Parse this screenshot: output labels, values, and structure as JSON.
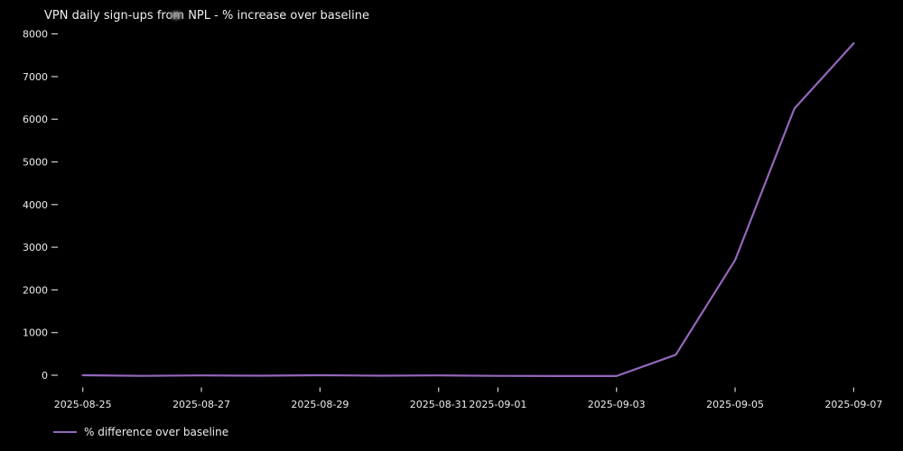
{
  "title": "VPN daily sign-ups from NPL - % increase over baseline",
  "legend": {
    "label": "% difference over baseline"
  },
  "colors": {
    "background": "#000000",
    "line": "#9467bd",
    "text": "#ececec",
    "tick": "#d0d0d0"
  },
  "chart_data": {
    "type": "line",
    "title": "VPN daily sign-ups from NPL - % increase over baseline",
    "xlabel": "",
    "ylabel": "",
    "grid": false,
    "legend_position": "lower-left-outside",
    "x": [
      "2025-08-25",
      "2025-08-26",
      "2025-08-27",
      "2025-08-28",
      "2025-08-29",
      "2025-08-30",
      "2025-08-31",
      "2025-09-01",
      "2025-09-02",
      "2025-09-03",
      "2025-09-04",
      "2025-09-05",
      "2025-09-06",
      "2025-09-07"
    ],
    "series": [
      {
        "name": "% difference over baseline",
        "color": "#9467bd",
        "values": [
          0,
          -15,
          -5,
          -10,
          0,
          -10,
          -5,
          -15,
          -20,
          -18,
          480,
          2700,
          6250,
          7780
        ]
      }
    ],
    "x_tick_labels": [
      "2025-08-25",
      "2025-08-27",
      "2025-08-29",
      "2025-08-31",
      "2025-09-01",
      "2025-09-03",
      "2025-09-05",
      "2025-09-07"
    ],
    "y_ticks": [
      0,
      1000,
      2000,
      3000,
      4000,
      5000,
      6000,
      7000,
      8000
    ],
    "ylim": [
      -380,
      8200
    ]
  }
}
